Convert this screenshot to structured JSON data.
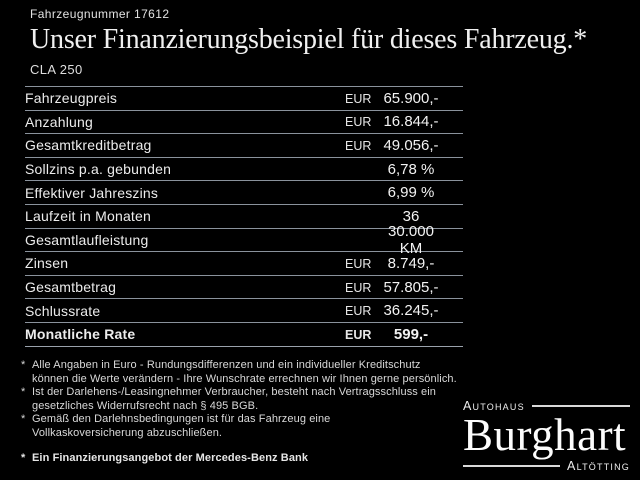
{
  "colors": {
    "background": "#000000",
    "text": "#e9e9e9",
    "rule": "#8a929c"
  },
  "header": {
    "vehicle_number": "Fahrzeugnummer 17612",
    "title": "Unser Finanzierungsbeispiel für dieses Fahrzeug.*",
    "model": "CLA 250"
  },
  "table": {
    "rows": [
      {
        "label": "Fahrzeugpreis",
        "currency": "EUR",
        "value": "65.900,-"
      },
      {
        "label": "Anzahlung",
        "currency": "EUR",
        "value": "16.844,-"
      },
      {
        "label": "Gesamtkreditbetrag",
        "currency": "EUR",
        "value": "49.056,-"
      },
      {
        "label": "Sollzins p.a. gebunden",
        "currency": "",
        "value": "6,78 %"
      },
      {
        "label": "Effektiver Jahreszins",
        "currency": "",
        "value": "6,99 %"
      },
      {
        "label": "Laufzeit in Monaten",
        "currency": "",
        "value": "36"
      },
      {
        "label": "Gesamtlaufleistung",
        "currency": "",
        "value": "30.000 KM"
      },
      {
        "label": "Zinsen",
        "currency": "EUR",
        "value": "8.749,-"
      },
      {
        "label": "Gesamtbetrag",
        "currency": "EUR",
        "value": "57.805,-"
      },
      {
        "label": "Schlussrate",
        "currency": "EUR",
        "value": "36.245,-"
      },
      {
        "label": "Monatliche Rate",
        "currency": "EUR",
        "value": "599,-"
      }
    ]
  },
  "footnotes": {
    "marker": "*",
    "items": [
      {
        "text": "Alle Angaben in Euro - Rundungsdifferenzen und ein individueller Kreditschutz\nkönnen die Werte verändern - Ihre Wunschrate errechnen wir Ihnen gerne persönlich."
      },
      {
        "text": "Ist der Darlehens-/Leasingnehmer Verbraucher, besteht nach Vertragsschluss ein\ngesetzliches Widerrufsrecht nach § 495 BGB."
      },
      {
        "text": "Gemäß den Darlehnsbedingungen ist für das Fahrzeug eine\nVollkaskoversicherung abzuschließen."
      },
      {
        "text": "Ein Finanzierungsangebot der Mercedes-Benz Bank"
      }
    ]
  },
  "dealer_logo": {
    "top_label": "Autohaus",
    "name": "Burghart",
    "bottom_label": "Altötting"
  }
}
